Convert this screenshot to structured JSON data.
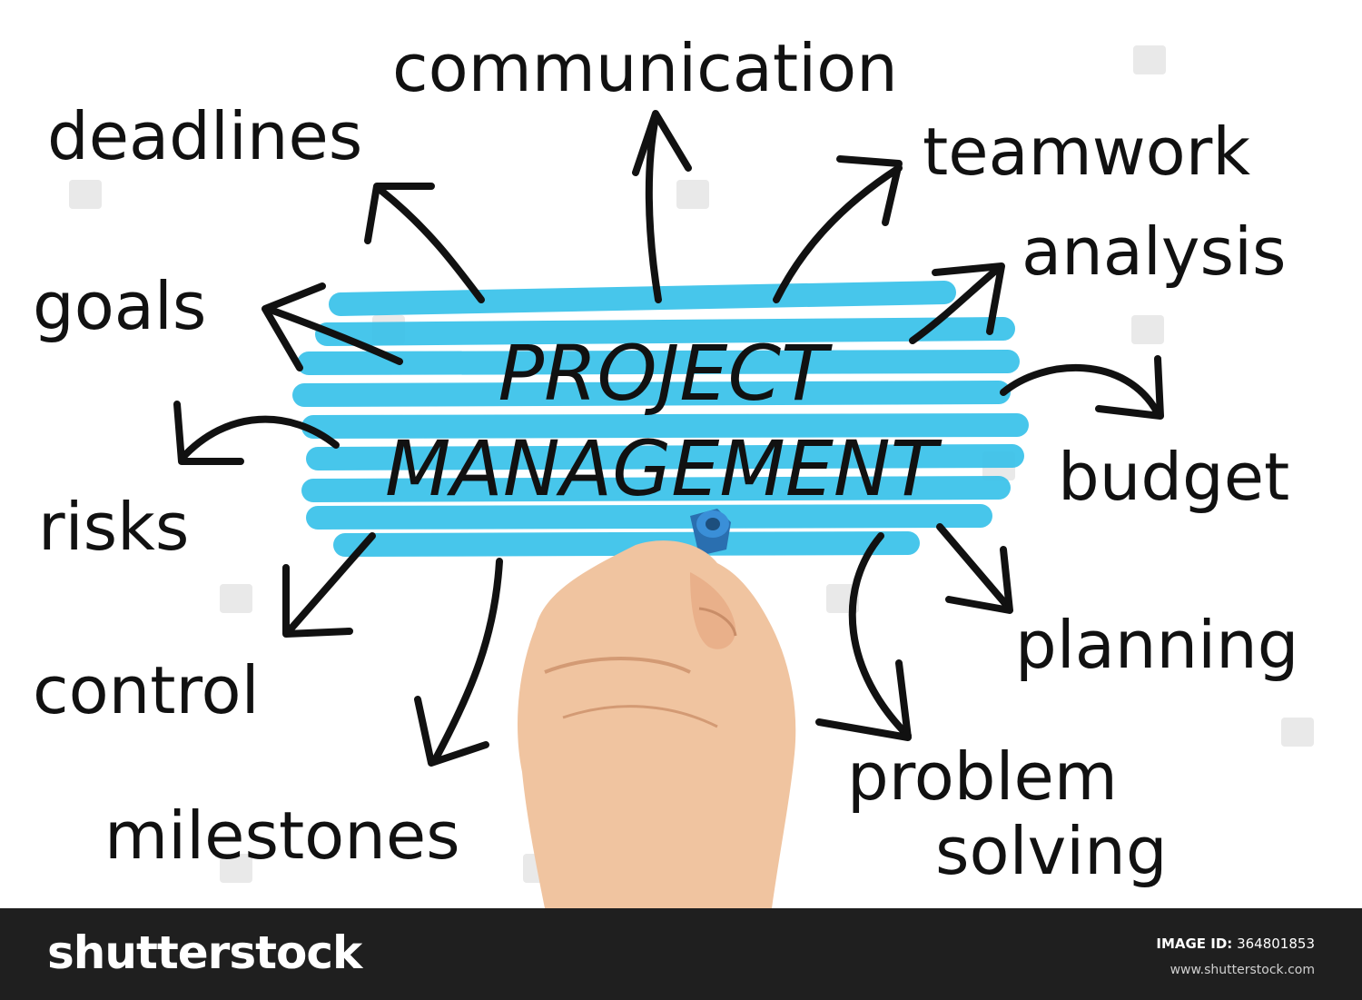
{
  "diagram": {
    "center_line1": "PROJECT",
    "center_line2": "MANAGEMENT",
    "highlight_color": "#3ec3ea",
    "terms": {
      "communication": "communication",
      "deadlines": "deadlines",
      "teamwork": "teamwork",
      "analysis": "analysis",
      "goals": "goals",
      "budget": "budget",
      "risks": "risks",
      "planning": "planning",
      "control": "control",
      "problem": "problem",
      "solving": "solving",
      "milestones": "milestones"
    }
  },
  "footer": {
    "logo": "shutterstock",
    "image_id_label": "IMAGE ID:",
    "image_id": "364801853",
    "url": "www.shutterstock.com"
  }
}
